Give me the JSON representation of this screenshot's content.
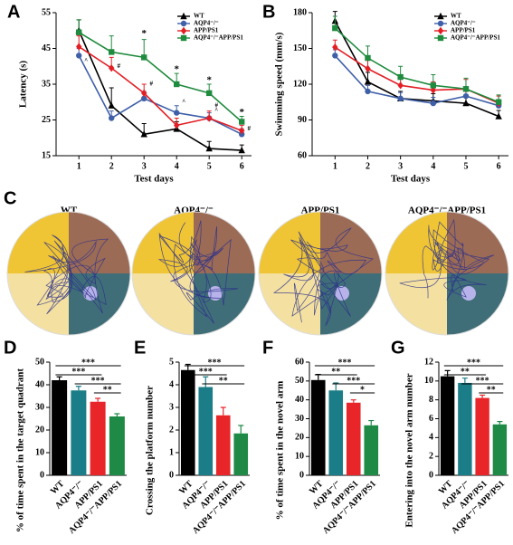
{
  "chart_data": [
    {
      "panel": "A",
      "type": "line",
      "y_label": "Latency (s)",
      "x_label": "Test days",
      "x": [
        1,
        2,
        3,
        4,
        5,
        6
      ],
      "xlim": [
        0.3,
        6.3
      ],
      "xticks": [
        1,
        2,
        3,
        4,
        5,
        6
      ],
      "ylim": [
        15,
        55
      ],
      "yticks": [
        15,
        25,
        35,
        45,
        55
      ],
      "legend": "upper right",
      "series": [
        {
          "name": "WT",
          "color": "#000000",
          "marker": "triangle",
          "values": [
            50,
            29,
            21,
            22.5,
            17,
            16.5
          ],
          "errors": [
            3,
            5,
            3,
            2,
            2,
            1.5
          ]
        },
        {
          "name": "AQP4⁻/⁻",
          "color": "#3f5fa8",
          "marker": "circle",
          "values": [
            43,
            25.5,
            31,
            27,
            25.5,
            21
          ],
          "errors": [
            2,
            2,
            2,
            2,
            1.5,
            1.5
          ]
        },
        {
          "name": "APP/PS1",
          "color": "#e31e24",
          "marker": "diamond",
          "values": [
            45.5,
            39.5,
            32.5,
            23.5,
            25.5,
            22
          ],
          "errors": [
            3,
            3,
            2.5,
            2,
            2,
            1.5
          ]
        },
        {
          "name": "AQP4⁻/⁻APP/PS1",
          "color": "#1f8b3e",
          "marker": "square",
          "values": [
            49.5,
            44,
            42.5,
            35,
            32.5,
            24.5
          ],
          "errors": [
            3.5,
            4.5,
            5,
            3,
            2.5,
            1.5
          ]
        }
      ],
      "annotations": [
        {
          "text": "^",
          "x": 1,
          "y": 41.5
        },
        {
          "text": "#",
          "x": 2,
          "y": 40
        },
        {
          "text": "*",
          "x": 3,
          "y": 49
        },
        {
          "text": "#",
          "x": 3,
          "y": 35
        },
        {
          "text": "*",
          "x": 4,
          "y": 39
        },
        {
          "text": "^",
          "x": 4,
          "y": 30
        },
        {
          "text": "*",
          "x": 5,
          "y": 36
        },
        {
          "text": "#",
          "x": 5,
          "y": 29
        },
        {
          "text": "^",
          "x": 5,
          "y": 27.5
        },
        {
          "text": "*",
          "x": 6,
          "y": 27
        },
        {
          "text": "#",
          "x": 6,
          "y": 22.5
        }
      ]
    },
    {
      "panel": "B",
      "type": "line",
      "y_label": "Swimming  speed (mm/s)",
      "x_label": "Test days",
      "x": [
        1,
        2,
        3,
        4,
        5,
        6
      ],
      "xlim": [
        0.3,
        6.3
      ],
      "xticks": [
        1,
        2,
        3,
        4,
        5,
        6
      ],
      "ylim": [
        60,
        180
      ],
      "yticks": [
        60,
        90,
        120,
        150,
        180
      ],
      "legend": "upper right",
      "series": [
        {
          "name": "WT",
          "color": "#000000",
          "marker": "triangle",
          "values": [
            173,
            122,
            108,
            106,
            104,
            93
          ],
          "errors": [
            8,
            8,
            6,
            6,
            5,
            5
          ]
        },
        {
          "name": "AQP4⁻/⁻",
          "color": "#3f5fa8",
          "marker": "circle",
          "values": [
            144,
            114,
            108,
            104,
            110,
            102
          ],
          "errors": [
            5,
            5,
            5,
            5,
            5,
            5
          ]
        },
        {
          "name": "APP/PS1",
          "color": "#e31e24",
          "marker": "diamond",
          "values": [
            151,
            133,
            119,
            115,
            116,
            104
          ],
          "errors": [
            6,
            7,
            7,
            7,
            8,
            6
          ]
        },
        {
          "name": "AQP4⁻/⁻APP/PS1",
          "color": "#1f8b3e",
          "marker": "square",
          "values": [
            167,
            142,
            126,
            119,
            116,
            105
          ],
          "errors": [
            10,
            10,
            9,
            9,
            9,
            6
          ]
        }
      ]
    },
    {
      "panel": "D",
      "type": "bar",
      "y_label": "% of time spent in the target quadrant",
      "categories": [
        "WT",
        "AQP4⁻/⁻",
        "APP/PS1",
        "AQP4⁻/⁻APP/PS1"
      ],
      "values": [
        42,
        37.5,
        32.5,
        26
      ],
      "errors": [
        1.5,
        1.8,
        1.5,
        1.2
      ],
      "colors": [
        "#000000",
        "#1b7d87",
        "#e8262a",
        "#1e8a46"
      ],
      "ylim": [
        0,
        50
      ],
      "yticks": [
        0,
        10,
        20,
        30,
        40,
        50
      ],
      "significance": [
        {
          "from": 0,
          "to": 3,
          "label": "***"
        },
        {
          "from": 0,
          "to": 2,
          "label": "***"
        },
        {
          "from": 1,
          "to": 3,
          "label": "***"
        },
        {
          "from": 2,
          "to": 3,
          "label": "**"
        }
      ]
    },
    {
      "panel": "E",
      "type": "bar",
      "y_label": "Crossing the platform number",
      "categories": [
        "WT",
        "AQP4⁻/⁻",
        "APP/PS1",
        "AQP4⁻/⁻APP/PS1"
      ],
      "values": [
        4.65,
        3.9,
        2.65,
        1.85
      ],
      "errors": [
        0.25,
        0.45,
        0.35,
        0.35
      ],
      "colors": [
        "#000000",
        "#1b7d87",
        "#e8262a",
        "#1e8a46"
      ],
      "ylim": [
        0,
        5
      ],
      "yticks": [
        0,
        1,
        2,
        3,
        4,
        5
      ],
      "significance": [
        {
          "from": 0,
          "to": 3,
          "label": "***"
        },
        {
          "from": 0,
          "to": 2,
          "label": "***"
        },
        {
          "from": 1,
          "to": 3,
          "label": "**"
        }
      ]
    },
    {
      "panel": "F",
      "type": "bar",
      "y_label": "% of time spent in the novel arm",
      "categories": [
        "WT",
        "AQP4⁻/⁻",
        "APP/PS1",
        "AQP4⁻/⁻APP/PS1"
      ],
      "values": [
        50.5,
        45,
        38.5,
        26.5
      ],
      "errors": [
        3,
        4,
        1.5,
        2.5
      ],
      "colors": [
        "#000000",
        "#1b7d87",
        "#e8262a",
        "#1e8a46"
      ],
      "ylim": [
        0,
        60
      ],
      "yticks": [
        0,
        10,
        20,
        30,
        40,
        50,
        60
      ],
      "significance": [
        {
          "from": 0,
          "to": 3,
          "label": "***"
        },
        {
          "from": 0,
          "to": 2,
          "label": "**"
        },
        {
          "from": 1,
          "to": 3,
          "label": "***"
        },
        {
          "from": 2,
          "to": 3,
          "label": "*"
        }
      ]
    },
    {
      "panel": "G",
      "type": "bar",
      "y_label": "Entering into the novel arm number",
      "categories": [
        "WT",
        "AQP4⁻/⁻",
        "APP/PS1",
        "AQP4⁻/⁻APP/PS1"
      ],
      "values": [
        10.5,
        9.8,
        8.2,
        5.4
      ],
      "errors": [
        0.6,
        0.5,
        0.3,
        0.3
      ],
      "colors": [
        "#000000",
        "#1b7d87",
        "#e8262a",
        "#1e8a46"
      ],
      "ylim": [
        0,
        12
      ],
      "yticks": [
        0,
        2,
        4,
        6,
        8,
        10,
        12
      ],
      "significance": [
        {
          "from": 0,
          "to": 3,
          "label": "***"
        },
        {
          "from": 0,
          "to": 2,
          "label": "**"
        },
        {
          "from": 1,
          "to": 3,
          "label": "***"
        },
        {
          "from": 2,
          "to": 3,
          "label": "**"
        }
      ]
    }
  ],
  "maze_panel": {
    "panel": "C",
    "titles": [
      "WT",
      "AQP4⁻/⁻",
      "APP/PS1",
      "AQP4⁻/⁻APP/PS1"
    ]
  }
}
